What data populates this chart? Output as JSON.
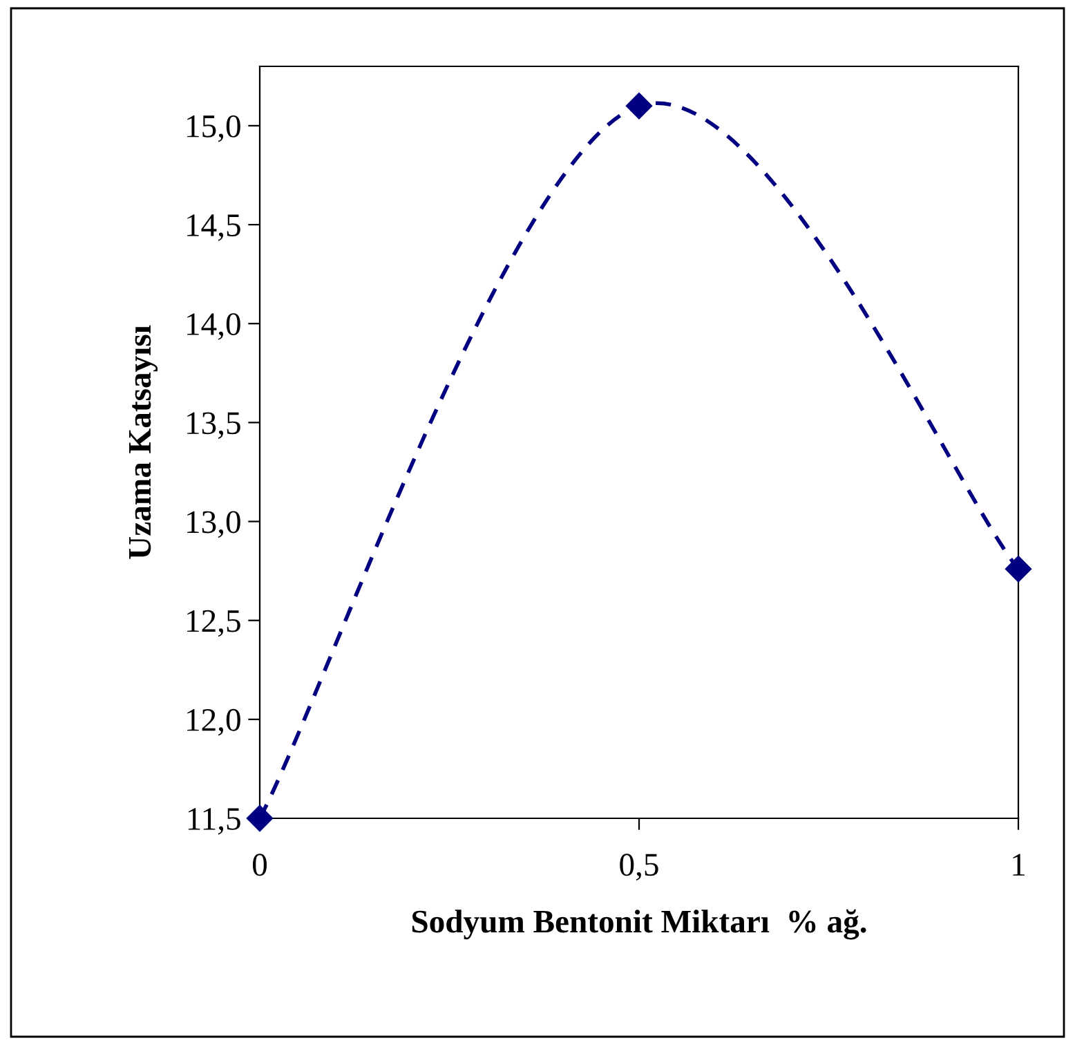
{
  "chart_data": {
    "type": "line",
    "xlabel": "Sodyum Bentonit Miktarı  % ağ.",
    "ylabel": "Uzama Katsayısı",
    "x": [
      0,
      0.5,
      1
    ],
    "series": [
      {
        "color": "#000080",
        "values": [
          11.5,
          15.1,
          12.76
        ]
      }
    ],
    "marker": "diamond",
    "line_style": "dashed",
    "grid": false,
    "legend": false,
    "xlim": [
      0,
      1
    ],
    "xticks": [
      {
        "value": 0,
        "label": "0"
      },
      {
        "value": 0.5,
        "label": "0,5"
      },
      {
        "value": 1,
        "label": "1"
      }
    ],
    "ylim": [
      11.5,
      15.3
    ],
    "yticks": [
      {
        "value": 11.5,
        "label": "11,5"
      },
      {
        "value": 12.0,
        "label": "12,0"
      },
      {
        "value": 12.5,
        "label": "12,5"
      },
      {
        "value": 13.0,
        "label": "13,0"
      },
      {
        "value": 13.5,
        "label": "13,5"
      },
      {
        "value": 14.0,
        "label": "14,0"
      },
      {
        "value": 14.5,
        "label": "14,5"
      },
      {
        "value": 15.0,
        "label": "15,0"
      }
    ]
  }
}
